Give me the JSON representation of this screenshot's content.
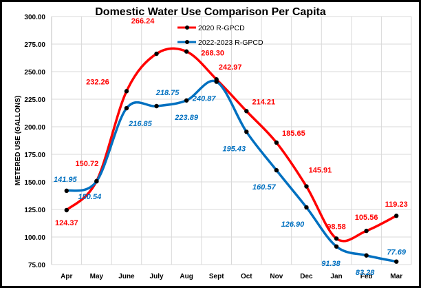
{
  "chart_data": {
    "type": "line",
    "title": "Domestic Water Use Comparison Per Capita",
    "xlabel": "",
    "ylabel": "METERED USE (GALLONS)",
    "categories": [
      "Apr",
      "May",
      "June",
      "July",
      "Aug",
      "Sept",
      "Oct",
      "Nov",
      "Dec",
      "Jan",
      "Feb",
      "Mar"
    ],
    "ylim": [
      75,
      300
    ],
    "yticks": [
      "75.00",
      "100.00",
      "125.00",
      "150.00",
      "175.00",
      "200.00",
      "225.00",
      "250.00",
      "275.00",
      "300.00"
    ],
    "grid": true,
    "legend_position": "top-center",
    "smooth": true,
    "series": [
      {
        "name": "2020  R-GPCD",
        "color": "#ff0000",
        "values": [
          124.37,
          150.72,
          232.26,
          266.24,
          268.3,
          242.97,
          214.21,
          185.65,
          145.91,
          98.58,
          105.56,
          119.23
        ],
        "labels": [
          "124.37",
          "150.72",
          "232.26",
          "266.24",
          "268.30",
          "242.97",
          "214.21",
          "185.65",
          "145.91",
          "98.58",
          "105.56",
          "119.23"
        ]
      },
      {
        "name": "2022-2023  R-GPCD",
        "color": "#0070c0",
        "values": [
          141.95,
          150.54,
          216.85,
          218.75,
          223.89,
          240.87,
          195.43,
          160.57,
          126.9,
          91.38,
          83.28,
          77.69
        ],
        "labels": [
          "141.95",
          "150.54",
          "216.85",
          "218.75",
          "223.89",
          "240.87",
          "195.43",
          "160.57",
          "126.90",
          "91.38",
          "83.28",
          "77.69"
        ]
      }
    ]
  }
}
